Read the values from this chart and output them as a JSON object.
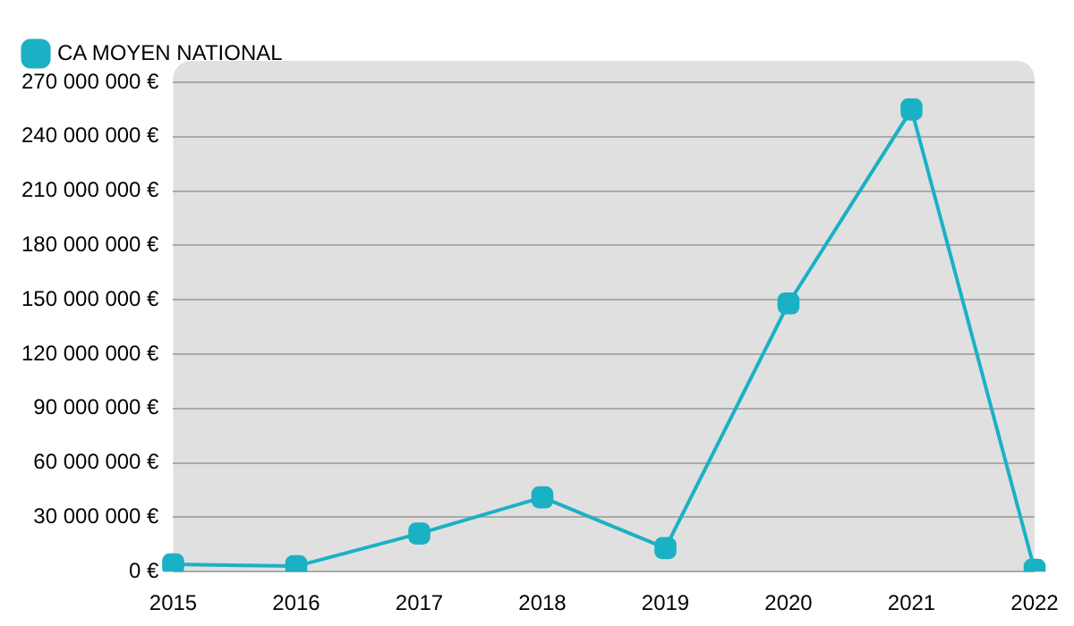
{
  "chart_data": {
    "type": "line",
    "categories": [
      "2015",
      "2016",
      "2017",
      "2018",
      "2019",
      "2020",
      "2021",
      "2022"
    ],
    "series": [
      {
        "name": "CA MOYEN NATIONAL",
        "color": "#1bb1c4",
        "values": [
          4000000,
          3000000,
          21000000,
          41000000,
          13000000,
          148000000,
          255000000,
          1000000
        ]
      }
    ],
    "ylim": [
      0,
      270000000
    ],
    "yticks": [
      {
        "value": 0,
        "label": "0 €"
      },
      {
        "value": 30000000,
        "label": "30 000 000 €"
      },
      {
        "value": 60000000,
        "label": "60 000 000 €"
      },
      {
        "value": 90000000,
        "label": "90 000 000 €"
      },
      {
        "value": 120000000,
        "label": "120 000 000 €"
      },
      {
        "value": 150000000,
        "label": "150 000 000 €"
      },
      {
        "value": 180000000,
        "label": "180 000 000 €"
      },
      {
        "value": 210000000,
        "label": "210 000 000 €"
      },
      {
        "value": 240000000,
        "label": "240 000 000 €"
      },
      {
        "value": 270000000,
        "label": "270 000 000 €"
      }
    ],
    "grid": "y",
    "legend": "top left",
    "marker": "square",
    "line_style": "solid"
  }
}
